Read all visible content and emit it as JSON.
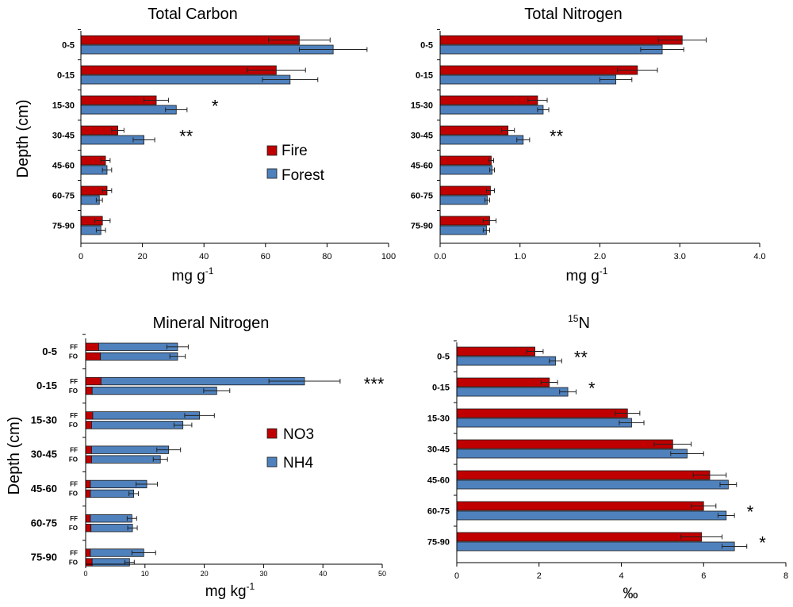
{
  "colors": {
    "fire": "#C00000",
    "forest": "#4F81BD",
    "bar_border": "#1a1a1a",
    "error_bar": "#222222"
  },
  "legends": {
    "fire_forest": {
      "items": [
        {
          "label": "Fire",
          "color": "#C00000"
        },
        {
          "label": "Forest",
          "color": "#4F81BD"
        }
      ]
    },
    "no3_nh4": {
      "items": [
        {
          "label": "NO3",
          "color": "#C00000"
        },
        {
          "label": "NH4",
          "color": "#4F81BD"
        }
      ]
    }
  },
  "chart_data": [
    {
      "type": "bar",
      "orientation": "horizontal",
      "title": "Total Carbon",
      "xlabel": "mg g-1",
      "xlabel_base": "mg g",
      "xlabel_sup": "-1",
      "ylabel": "Depth (cm)",
      "categories": [
        "0-5",
        "0-15",
        "15-30",
        "30-45",
        "45-60",
        "60-75",
        "75-90"
      ],
      "xlim": [
        0,
        100
      ],
      "xticks": [
        0,
        20,
        40,
        60,
        80,
        100
      ],
      "xtick_labels": [
        "0",
        "20",
        "40",
        "60",
        "80",
        "100"
      ],
      "legend": "fire_forest",
      "legend_position": "center-right",
      "series": [
        {
          "name": "Fire",
          "color": "#C00000",
          "values": [
            71,
            63.5,
            24.5,
            12,
            8,
            8.5,
            7
          ],
          "errors": [
            10,
            9.5,
            4,
            2,
            1.5,
            1.5,
            2.5
          ]
        },
        {
          "name": "Forest",
          "color": "#4F81BD",
          "values": [
            82,
            68,
            31,
            20.5,
            8.5,
            6,
            6.5
          ],
          "errors": [
            11,
            9,
            3.5,
            3.5,
            1.5,
            1,
            1.5
          ]
        }
      ],
      "significance": [
        "",
        "",
        "*",
        "**",
        "",
        "",
        ""
      ]
    },
    {
      "type": "bar",
      "orientation": "horizontal",
      "title": "Total Nitrogen",
      "xlabel": "mg g-1",
      "xlabel_base": "mg g",
      "xlabel_sup": "-1",
      "ylabel": "",
      "categories": [
        "0-5",
        "0-15",
        "15-30",
        "30-45",
        "45-60",
        "60-75",
        "75-90"
      ],
      "xlim": [
        0,
        4
      ],
      "xticks": [
        0,
        1,
        2,
        3,
        4
      ],
      "xtick_labels": [
        "0.0",
        "1.0",
        "2.0",
        "3.0",
        "4.0"
      ],
      "series": [
        {
          "name": "Fire",
          "color": "#C00000",
          "values": [
            3.03,
            2.47,
            1.22,
            0.85,
            0.64,
            0.63,
            0.62
          ],
          "errors": [
            0.3,
            0.25,
            0.12,
            0.08,
            0.03,
            0.05,
            0.08
          ]
        },
        {
          "name": "Forest",
          "color": "#4F81BD",
          "values": [
            2.78,
            2.2,
            1.29,
            1.04,
            0.65,
            0.59,
            0.58
          ],
          "errors": [
            0.27,
            0.2,
            0.07,
            0.08,
            0.03,
            0.03,
            0.04
          ]
        }
      ],
      "significance": [
        "",
        "",
        "",
        "**",
        "",
        "",
        ""
      ]
    },
    {
      "type": "bar",
      "orientation": "horizontal",
      "stacked": true,
      "title": "Mineral Nitrogen",
      "xlabel": "mg kg-1",
      "xlabel_base": "mg kg",
      "xlabel_sup": "-1",
      "ylabel": "Depth (cm)",
      "categories": [
        "0-5",
        "0-15",
        "15-30",
        "30-45",
        "45-60",
        "60-75",
        "75-90"
      ],
      "subcategories": [
        "FF",
        "FO"
      ],
      "xlim": [
        0,
        50
      ],
      "xticks": [
        0,
        10,
        20,
        30,
        40,
        50
      ],
      "xtick_labels": [
        "0",
        "10",
        "20",
        "30",
        "40",
        "50"
      ],
      "legend": "no3_nh4",
      "legend_position": "center-right",
      "series": [
        {
          "name": "NO3",
          "color": "#C00000",
          "values_FF": [
            2.2,
            2.6,
            1.2,
            1.0,
            0.8,
            0.8,
            0.8
          ],
          "values_FO": [
            2.5,
            1.1,
            1.0,
            1.0,
            0.8,
            0.9,
            1.1
          ]
        },
        {
          "name": "NH4",
          "color": "#4F81BD",
          "values_FF": [
            13.3,
            34.3,
            18.0,
            13.0,
            9.5,
            7.0,
            9.0
          ],
          "values_FO": [
            13.0,
            21.0,
            15.4,
            11.6,
            7.3,
            7.0,
            6.3
          ]
        }
      ],
      "errors_FF": [
        1.8,
        6.0,
        2.5,
        2.0,
        1.8,
        0.8,
        2.0
      ],
      "errors_FO": [
        1.3,
        2.2,
        1.5,
        1.2,
        0.8,
        0.8,
        0.8
      ],
      "significance": [
        "",
        "***",
        "",
        "",
        "",
        "",
        ""
      ]
    },
    {
      "type": "bar",
      "orientation": "horizontal",
      "title": "15N",
      "title_sup": "15",
      "title_base": "N",
      "xlabel": "‰",
      "ylabel": "",
      "categories": [
        "0-5",
        "0-15",
        "15-30",
        "30-45",
        "45-60",
        "60-75",
        "75-90"
      ],
      "xlim": [
        0,
        8
      ],
      "xticks": [
        0,
        2,
        4,
        6,
        8
      ],
      "xtick_labels": [
        "0",
        "2",
        "4",
        "6",
        "8"
      ],
      "series": [
        {
          "name": "Fire",
          "color": "#C00000",
          "values": [
            1.9,
            2.25,
            4.15,
            5.25,
            6.15,
            6.0,
            5.95
          ],
          "errors": [
            0.2,
            0.2,
            0.3,
            0.45,
            0.4,
            0.3,
            0.5
          ]
        },
        {
          "name": "Forest",
          "color": "#4F81BD",
          "values": [
            2.4,
            2.7,
            4.25,
            5.6,
            6.6,
            6.55,
            6.75
          ],
          "errors": [
            0.15,
            0.2,
            0.3,
            0.4,
            0.2,
            0.2,
            0.3
          ]
        }
      ],
      "significance": [
        "**",
        "*",
        "",
        "",
        "",
        "*",
        "*"
      ]
    }
  ]
}
